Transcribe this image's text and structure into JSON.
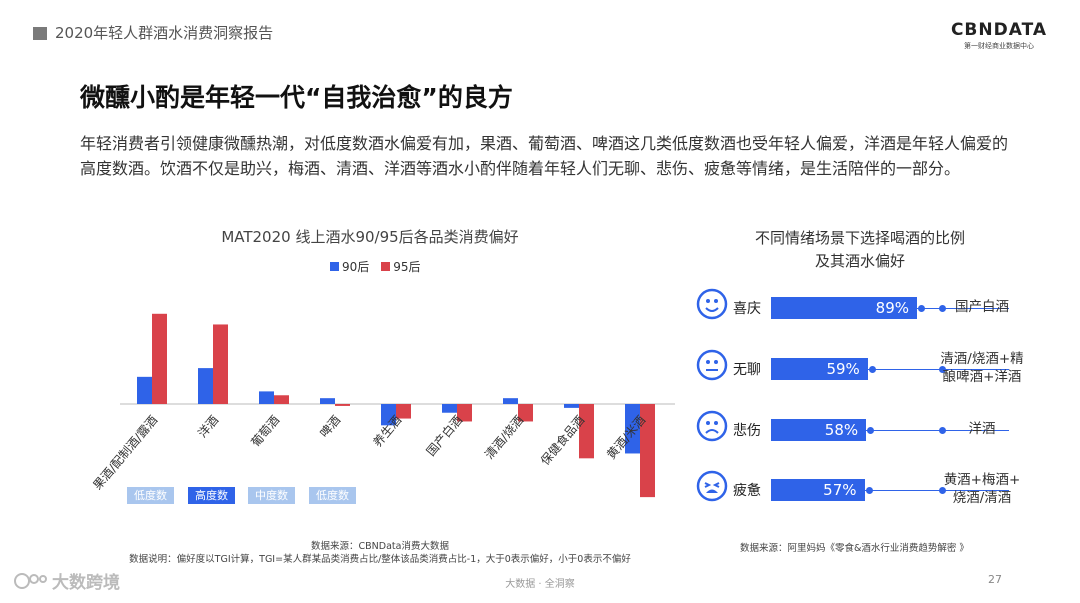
{
  "header": {
    "report_title": "2020年轻人群酒水消费洞察报告",
    "brand_name": "CBNDATA",
    "brand_sub": "第一财经商业数据中心"
  },
  "main_title": "微醺小酌是年轻一代“自我治愈”的良方",
  "description": "年轻消费者引领健康微醺热潮，对低度数酒水偏爱有加，果酒、葡萄酒、啤酒这几类低度数酒也受年轻人偏爱，洋酒是年轻人偏爱的高度数酒。饮酒不仅是助兴，梅酒、清酒、洋酒等酒水小酌伴随着年轻人们无聊、悲伤、疲惫等情绪，是生活陪伴的一部分。",
  "chart_data": [
    {
      "type": "bar",
      "title": "MAT2020 线上酒水90/95后各品类消费偏好",
      "categories": [
        "果酒/配制酒/露酒",
        "洋酒",
        "葡萄酒",
        "啤酒",
        "养生酒",
        "国产白酒",
        "清酒/烧酒",
        "保健食品酒",
        "黄酒/米酒"
      ],
      "series": [
        {
          "name": "90后",
          "color": "#2f63e8",
          "values": [
            0.28,
            0.37,
            0.13,
            0.06,
            -0.22,
            -0.09,
            0.06,
            -0.04,
            -0.51
          ]
        },
        {
          "name": "95后",
          "color": "#d9424a",
          "values": [
            0.93,
            0.82,
            0.09,
            -0.02,
            -0.15,
            -0.18,
            -0.18,
            -0.56,
            -0.96
          ]
        }
      ],
      "degree_tags": [
        {
          "label": "低度数",
          "color": "#a9c6ee"
        },
        {
          "label": "高度数",
          "color": "#2f63e8"
        },
        {
          "label": "中度数",
          "color": "#a9c6ee"
        },
        {
          "label": "低度数",
          "color": "#a9c6ee"
        }
      ],
      "source": "数据来源：CBNData消费大数据",
      "note": "数据说明：偏好度以TGI计算，TGI=某人群某品类消费占比/整体该品类消费占比-1，大于0表示偏好，小于0表示不偏好"
    },
    {
      "type": "bar",
      "title_line1": "不同情绪场景下选择喝酒的比例",
      "title_line2": "及其酒水偏好",
      "categories": [
        "喜庆",
        "无聊",
        "悲伤",
        "疲惫"
      ],
      "values": [
        89,
        59,
        58,
        57
      ],
      "value_labels": [
        "89%",
        "59%",
        "58%",
        "57%"
      ],
      "drinks": [
        [
          "国产白酒"
        ],
        [
          "清酒/烧酒+精",
          "酿啤酒+洋酒"
        ],
        [
          "洋酒"
        ],
        [
          "黄酒+梅酒+",
          "烧酒/清酒"
        ]
      ],
      "icons": [
        "happy-face-icon",
        "bored-face-icon",
        "sad-face-icon",
        "tired-face-icon"
      ],
      "source": "数据来源：阿里妈妈《零食&酒水行业消费趋势解密 》"
    }
  ],
  "footer": {
    "center": "大数据 · 全洞察",
    "page": "27",
    "watermark": "大数跨境"
  }
}
